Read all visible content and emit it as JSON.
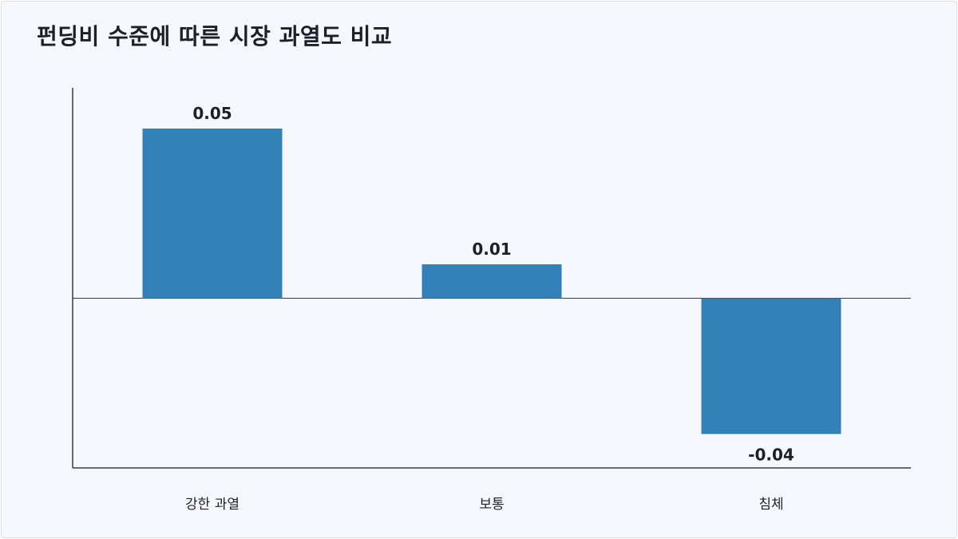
{
  "chart_data": {
    "type": "bar",
    "title": "펀딩비 수준에 따른 시장 과열도 비교",
    "categories": [
      "강한 과열",
      "보통",
      "침체"
    ],
    "values": [
      0.05,
      0.01,
      -0.04
    ],
    "value_labels": [
      "0.05",
      "0.01",
      "-0.04"
    ],
    "xlabel": "",
    "ylabel": "",
    "ylim": [
      -0.05,
      0.062
    ],
    "grid": false,
    "legend": "none",
    "colors": {
      "bar": "#3381b9",
      "axis": "#3a3a4a",
      "zero_line": "#3a3a4a"
    }
  }
}
